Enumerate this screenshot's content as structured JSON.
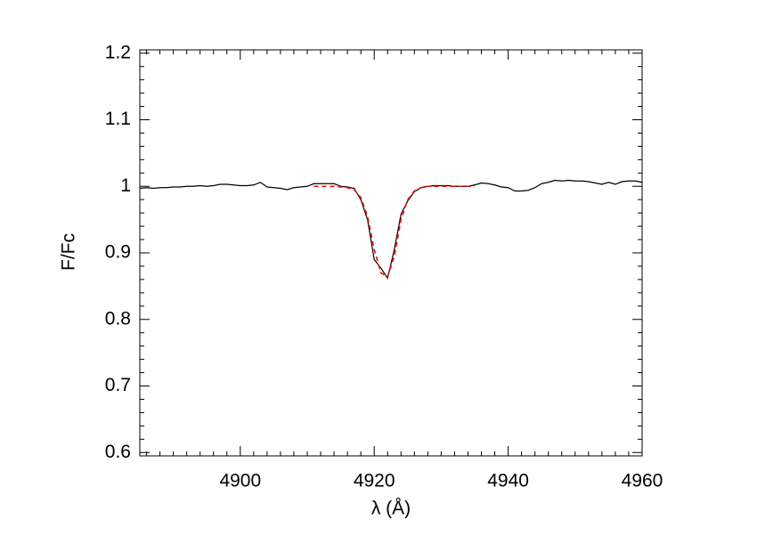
{
  "chart_data": {
    "type": "line",
    "xlabel": "λ (Å)",
    "ylabel": "F/Fc",
    "xlim": [
      4885,
      4960
    ],
    "ylim": [
      0.595,
      1.205
    ],
    "xticks": [
      4900,
      4920,
      4940,
      4960
    ],
    "yticks": [
      0.6,
      0.7,
      0.8,
      0.9,
      1.0,
      1.1,
      1.2
    ],
    "xminorticks": [
      4886,
      4888,
      4890,
      4892,
      4894,
      4896,
      4898,
      4902,
      4904,
      4906,
      4908,
      4910,
      4912,
      4914,
      4916,
      4918,
      4922,
      4924,
      4926,
      4928,
      4930,
      4932,
      4934,
      4936,
      4938,
      4942,
      4944,
      4946,
      4948,
      4950,
      4952,
      4954,
      4956,
      4958
    ],
    "yminorticks": [
      0.62,
      0.64,
      0.66,
      0.68,
      0.72,
      0.74,
      0.76,
      0.78,
      0.82,
      0.84,
      0.86,
      0.88,
      0.92,
      0.94,
      0.96,
      0.98,
      1.02,
      1.04,
      1.06,
      1.08,
      1.12,
      1.14,
      1.16,
      1.18
    ],
    "series": [
      {
        "color": "#000000",
        "dash": false,
        "x": [
          4885,
          4886,
          4887,
          4888,
          4889,
          4890,
          4891,
          4892,
          4893,
          4894,
          4895,
          4896,
          4897,
          4898,
          4899,
          4900,
          4901,
          4902,
          4903,
          4904,
          4905,
          4906,
          4907,
          4908,
          4909,
          4910,
          4911,
          4912,
          4913,
          4914,
          4915,
          4916,
          4917,
          4918,
          4919,
          4920,
          4921,
          4922,
          4923,
          4924,
          4925,
          4926,
          4927,
          4928,
          4929,
          4930,
          4931,
          4932,
          4933,
          4934,
          4935,
          4936,
          4937,
          4938,
          4939,
          4940,
          4941,
          4942,
          4943,
          4944,
          4945,
          4946,
          4947,
          4948,
          4949,
          4950,
          4951,
          4952,
          4953,
          4954,
          4955,
          4956,
          4957,
          4958,
          4959,
          4960
        ],
        "values": [
          0.997,
          0.998,
          0.997,
          0.998,
          0.998,
          0.999,
          0.999,
          1.0,
          1.0,
          1.001,
          1.0,
          1.001,
          1.003,
          1.003,
          1.002,
          1.001,
          1.001,
          1.002,
          1.006,
          0.999,
          0.998,
          0.997,
          0.995,
          0.998,
          0.999,
          1.0,
          1.004,
          1.004,
          1.004,
          1.004,
          1.0,
          0.999,
          0.997,
          0.98,
          0.95,
          0.89,
          0.877,
          0.862,
          0.905,
          0.958,
          0.978,
          0.992,
          0.998,
          1.0,
          1.001,
          1.001,
          1.001,
          1.0,
          1.0,
          1.0,
          1.002,
          1.005,
          1.004,
          1.002,
          0.999,
          0.998,
          0.993,
          0.993,
          0.994,
          0.998,
          1.004,
          1.006,
          1.009,
          1.008,
          1.009,
          1.008,
          1.008,
          1.007,
          1.005,
          1.003,
          1.006,
          1.003,
          1.007,
          1.008,
          1.008,
          1.006
        ]
      },
      {
        "color": "#ff0000",
        "dash": true,
        "x": [
          4911,
          4912,
          4913,
          4914,
          4915,
          4916,
          4917,
          4918,
          4919,
          4920,
          4921,
          4922,
          4923,
          4924,
          4925,
          4926,
          4927,
          4928,
          4929,
          4930,
          4931,
          4932,
          4933,
          4934,
          4935
        ],
        "values": [
          1.0,
          1.0,
          1.0,
          1.0,
          0.999,
          0.998,
          0.995,
          0.983,
          0.955,
          0.905,
          0.87,
          0.864,
          0.895,
          0.95,
          0.98,
          0.993,
          0.998,
          1.0,
          1.0,
          1.0,
          1.0,
          1.0,
          1.0,
          1.0,
          1.0
        ]
      }
    ]
  }
}
